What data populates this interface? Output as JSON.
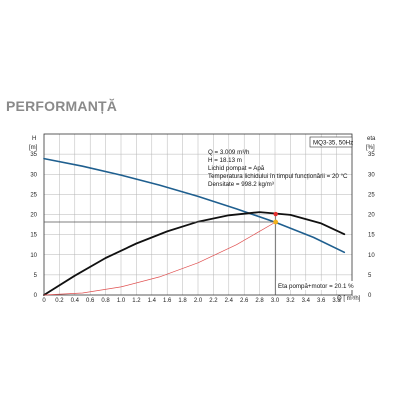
{
  "page": {
    "title": "PERFORMANȚĂ"
  },
  "chart_data": {
    "type": "line",
    "model": "MQ3-35, 50Hz",
    "xlabel": "Q [ m³/h]",
    "ylabel_left": "H",
    "ylabel_left_unit": "[m]",
    "ylabel_right": "eta",
    "ylabel_right_unit": "[%]",
    "xlim": [
      0,
      4.0
    ],
    "ylim_left": [
      0,
      40
    ],
    "ylim_right": [
      0,
      40
    ],
    "x_ticks": [
      "0",
      "0.2",
      "0.4",
      "0.6",
      "0.8",
      "1.0",
      "1.2",
      "1.4",
      "1.6",
      "1.8",
      "2.0",
      "2.2",
      "2.4",
      "2.6",
      "2.8",
      "3.0",
      "3.2",
      "3.4",
      "3.6",
      "3.8"
    ],
    "y_ticks_left": [
      "0",
      "5",
      "10",
      "15",
      "20",
      "25",
      "30",
      "35"
    ],
    "y_ticks_right": [
      "0",
      "5",
      "10",
      "15",
      "20",
      "25",
      "30",
      "35"
    ],
    "grid": true,
    "series": [
      {
        "axis": "left",
        "color": "#1f5f8f",
        "x": [
          0.0,
          0.5,
          1.0,
          1.5,
          2.0,
          2.5,
          3.0,
          3.5,
          3.9
        ],
        "values": [
          33.9,
          32.0,
          29.8,
          27.3,
          24.5,
          21.4,
          18.1,
          14.3,
          10.6
        ]
      },
      {
        "axis": "right",
        "color": "#111111",
        "x": [
          0.0,
          0.4,
          0.8,
          1.2,
          1.6,
          2.0,
          2.4,
          2.8,
          3.2,
          3.6,
          3.9
        ],
        "values": [
          0.0,
          4.8,
          9.2,
          12.8,
          15.8,
          18.2,
          19.8,
          20.6,
          19.9,
          17.8,
          15.1
        ]
      },
      {
        "axis": "left",
        "color": "#e05050",
        "x": [
          0.0,
          0.5,
          1.0,
          1.5,
          2.0,
          2.5,
          3.009
        ],
        "values": [
          0.0,
          0.5,
          2.0,
          4.5,
          8.0,
          12.5,
          18.13
        ]
      }
    ],
    "operating_point": {
      "q": 3.009,
      "h": 18.13,
      "eta": 20.1
    },
    "info_lines": [
      "Q = 3.009  m³/h",
      "H = 18.13 m",
      "Lichid pompat = Apă",
      "Temperatura lichidului în timpul funcționării = 20  °C",
      "Densitate = 998.2  kg/m³"
    ],
    "eta_label": "Eta pompă+motor = 20.1 %"
  }
}
